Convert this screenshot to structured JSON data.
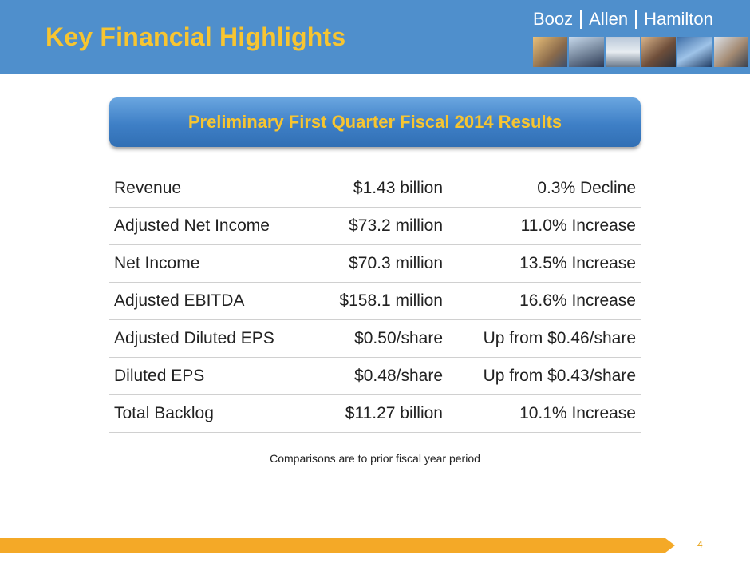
{
  "header": {
    "title": "Key Financial Highlights",
    "brand": {
      "part1": "Booz",
      "part2": "Allen",
      "part3": "Hamilton"
    },
    "bg_color": "#4f8fcc",
    "title_color": "#f7c531"
  },
  "banner": {
    "text": "Preliminary First Quarter Fiscal 2014 Results",
    "color": "#3e7fc6"
  },
  "table": {
    "rows": [
      {
        "metric": "Revenue",
        "value": "$1.43 billion",
        "change": "0.3% Decline"
      },
      {
        "metric": "Adjusted Net Income",
        "value": "$73.2 million",
        "change": "11.0% Increase"
      },
      {
        "metric": "Net Income",
        "value": "$70.3 million",
        "change": "13.5% Increase"
      },
      {
        "metric": "Adjusted EBITDA",
        "value": "$158.1 million",
        "change": "16.6% Increase"
      },
      {
        "metric": "Adjusted Diluted EPS",
        "value": "$0.50/share",
        "change": "Up from $0.46/share"
      },
      {
        "metric": "Diluted EPS",
        "value": "$0.48/share",
        "change": "Up from $0.43/share"
      },
      {
        "metric": "Total Backlog",
        "value": "$11.27 billion",
        "change": "10.1% Increase"
      }
    ]
  },
  "footnote": "Comparisons are to prior fiscal year period",
  "footer": {
    "page_number": "4",
    "bar_color": "#f4a927"
  }
}
